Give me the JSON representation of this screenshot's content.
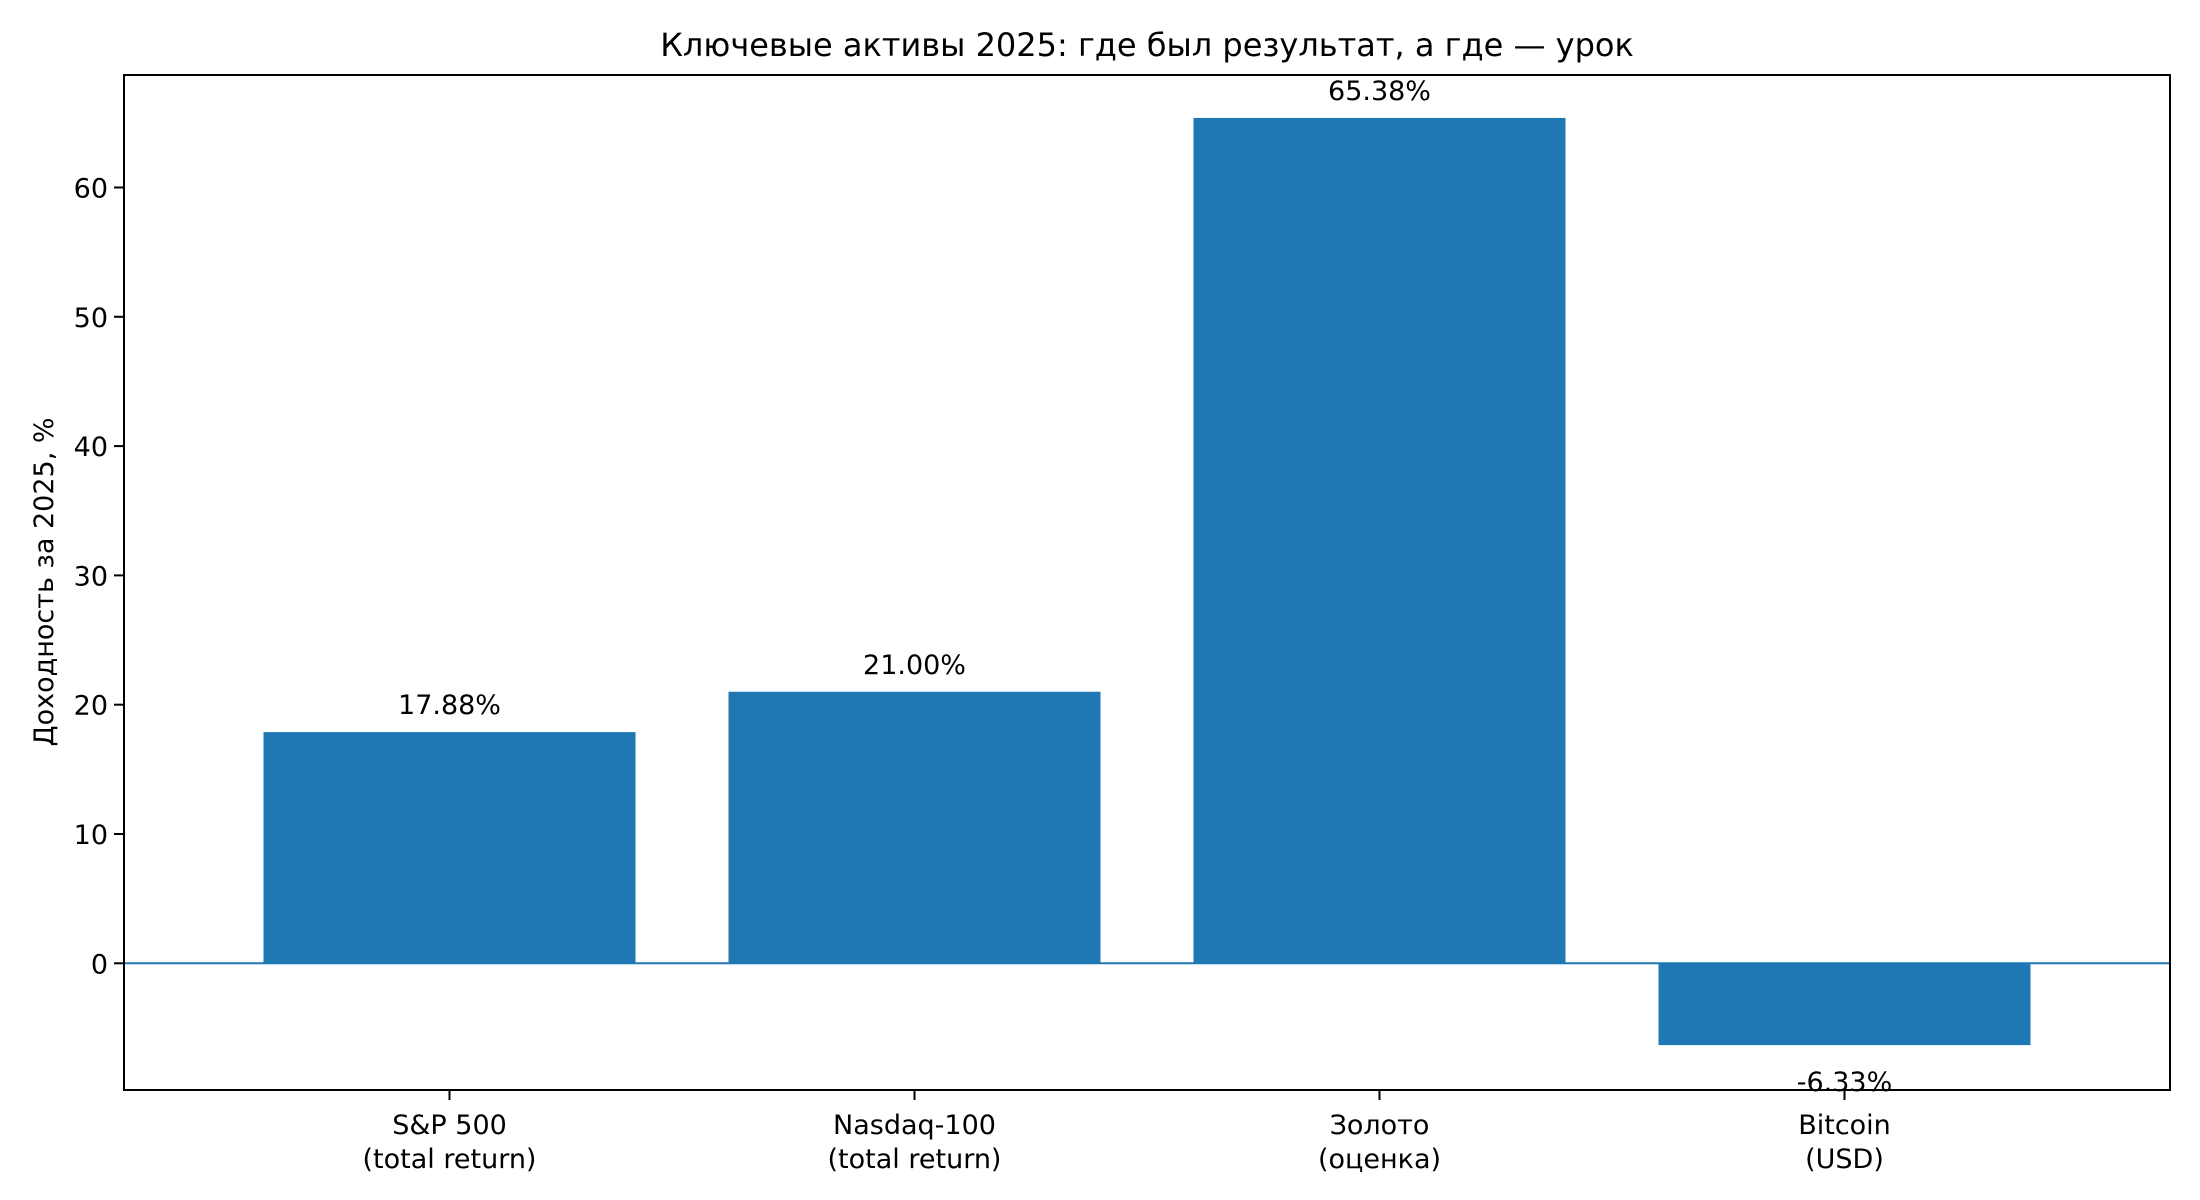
{
  "chart_data": {
    "type": "bar",
    "title": "Ключевые активы 2025: где был результат, а где — урок",
    "xlabel": "",
    "ylabel": "Доходность за 2025, %",
    "categories": [
      [
        "S&P 500",
        "(total return)"
      ],
      [
        "Nasdaq-100",
        "(total return)"
      ],
      [
        "Золото",
        "(оценка)"
      ],
      [
        "Bitcoin",
        "(USD)"
      ]
    ],
    "values": [
      17.88,
      21.0,
      65.38,
      -6.33
    ],
    "value_labels": [
      "17.88%",
      "21.00%",
      "65.38%",
      "-6.33%"
    ],
    "ylim": [
      -9.8,
      68.7
    ],
    "yticks": [
      0,
      10,
      20,
      30,
      40,
      50,
      60
    ],
    "grid": false,
    "legend": null,
    "zero_line": true,
    "colors": {
      "bar": "#1f77b4",
      "zero_line": "#1f77b4",
      "axes": "#000000"
    }
  }
}
